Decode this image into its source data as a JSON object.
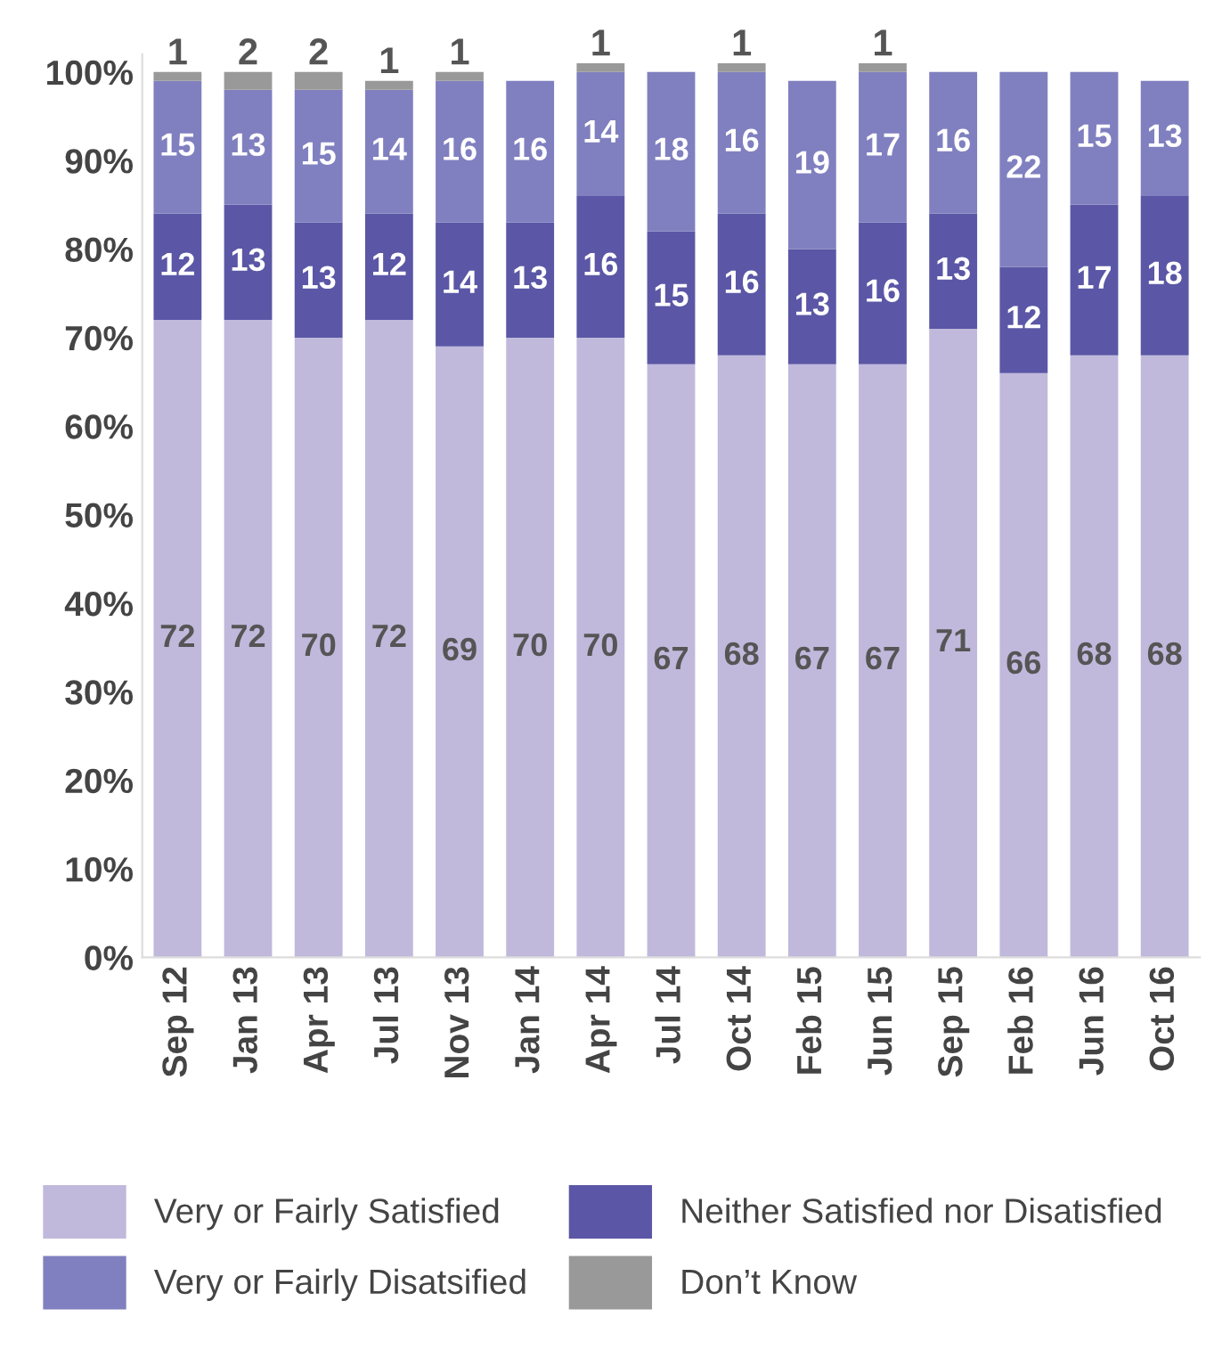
{
  "chart_data": {
    "type": "bar",
    "stacked": true,
    "categories": [
      "Sep 12",
      "Jan 13",
      "Apr 13",
      "Jul 13",
      "Nov 13",
      "Jan 14",
      "Apr 14",
      "Jul 14",
      "Oct 14",
      "Feb 15",
      "Jun 15",
      "Sep 15",
      "Feb 16",
      "Jun 16",
      "Oct 16"
    ],
    "series": [
      {
        "name": "Very or Fairly Satisfied",
        "color": "#c0b9dc",
        "values": [
          72,
          72,
          70,
          72,
          69,
          70,
          70,
          67,
          68,
          67,
          67,
          71,
          66,
          68,
          68
        ]
      },
      {
        "name": "Neither Satisfied nor Disatisfied",
        "color": "#5b57a6",
        "values": [
          12,
          13,
          13,
          12,
          14,
          13,
          16,
          15,
          16,
          13,
          16,
          13,
          12,
          17,
          18
        ]
      },
      {
        "name": "Very or Fairly Disatsified",
        "color": "#8080c0",
        "values": [
          15,
          13,
          15,
          14,
          16,
          16,
          14,
          18,
          16,
          19,
          17,
          16,
          22,
          15,
          13
        ]
      },
      {
        "name": "Don’t Know",
        "color": "#999999",
        "values": [
          1,
          2,
          2,
          1,
          1,
          null,
          1,
          null,
          1,
          null,
          1,
          null,
          null,
          null,
          null
        ]
      }
    ],
    "ylim": [
      0,
      102
    ],
    "yticks": [
      {
        "value": 0,
        "label": "0%"
      },
      {
        "value": 10,
        "label": "10%"
      },
      {
        "value": 20,
        "label": "20%"
      },
      {
        "value": 30,
        "label": "30%"
      },
      {
        "value": 40,
        "label": "40%"
      },
      {
        "value": 50,
        "label": "50%"
      },
      {
        "value": 60,
        "label": "60%"
      },
      {
        "value": 70,
        "label": "70%"
      },
      {
        "value": 80,
        "label": "80%"
      },
      {
        "value": 90,
        "label": "90%"
      },
      {
        "value": 100,
        "label": "100%"
      }
    ],
    "data_labels": true,
    "grid": false,
    "legend": "bottom"
  }
}
